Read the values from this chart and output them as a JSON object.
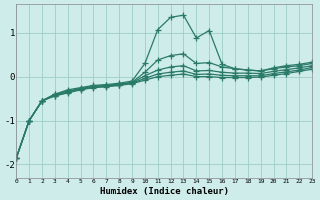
{
  "xlabel": "Humidex (Indice chaleur)",
  "background_color": "#ceecea",
  "grid_color": "#9dceca",
  "line_color": "#2a7a6a",
  "xlim": [
    0,
    23
  ],
  "ylim": [
    -2.3,
    1.65
  ],
  "xticks": [
    0,
    1,
    2,
    3,
    4,
    5,
    6,
    7,
    8,
    9,
    10,
    11,
    12,
    13,
    14,
    15,
    16,
    17,
    18,
    19,
    20,
    21,
    22,
    23
  ],
  "yticks": [
    -2,
    -1,
    0,
    1
  ],
  "x": [
    0,
    1,
    2,
    3,
    4,
    5,
    6,
    7,
    8,
    9,
    10,
    11,
    12,
    13,
    14,
    15,
    16,
    17,
    18,
    19,
    20,
    21,
    22,
    23
  ],
  "series": [
    [
      -1.85,
      -1.0,
      -0.55,
      -0.4,
      -0.3,
      -0.25,
      -0.2,
      -0.18,
      -0.15,
      -0.1,
      0.3,
      1.07,
      1.35,
      1.4,
      0.88,
      1.05,
      0.28,
      0.18,
      0.15,
      0.13,
      0.2,
      0.25,
      0.28,
      0.33
    ],
    [
      -1.85,
      -1.0,
      -0.55,
      -0.4,
      -0.33,
      -0.27,
      -0.22,
      -0.2,
      -0.17,
      -0.13,
      0.1,
      0.38,
      0.48,
      0.52,
      0.3,
      0.32,
      0.22,
      0.18,
      0.15,
      0.13,
      0.18,
      0.22,
      0.25,
      0.3
    ],
    [
      -1.85,
      -1.0,
      -0.55,
      -0.42,
      -0.35,
      -0.28,
      -0.23,
      -0.21,
      -0.18,
      -0.14,
      0.02,
      0.15,
      0.22,
      0.25,
      0.13,
      0.14,
      0.1,
      0.08,
      0.08,
      0.07,
      0.12,
      0.16,
      0.2,
      0.25
    ],
    [
      -1.85,
      -1.0,
      -0.55,
      -0.43,
      -0.36,
      -0.29,
      -0.24,
      -0.22,
      -0.19,
      -0.15,
      -0.04,
      0.06,
      0.1,
      0.13,
      0.05,
      0.06,
      0.03,
      0.02,
      0.02,
      0.02,
      0.07,
      0.11,
      0.15,
      0.21
    ],
    [
      -1.85,
      -1.0,
      -0.55,
      -0.44,
      -0.37,
      -0.3,
      -0.25,
      -0.23,
      -0.2,
      -0.16,
      -0.08,
      0.0,
      0.03,
      0.06,
      0.0,
      0.0,
      -0.02,
      -0.02,
      -0.02,
      -0.01,
      0.03,
      0.07,
      0.12,
      0.17
    ]
  ]
}
